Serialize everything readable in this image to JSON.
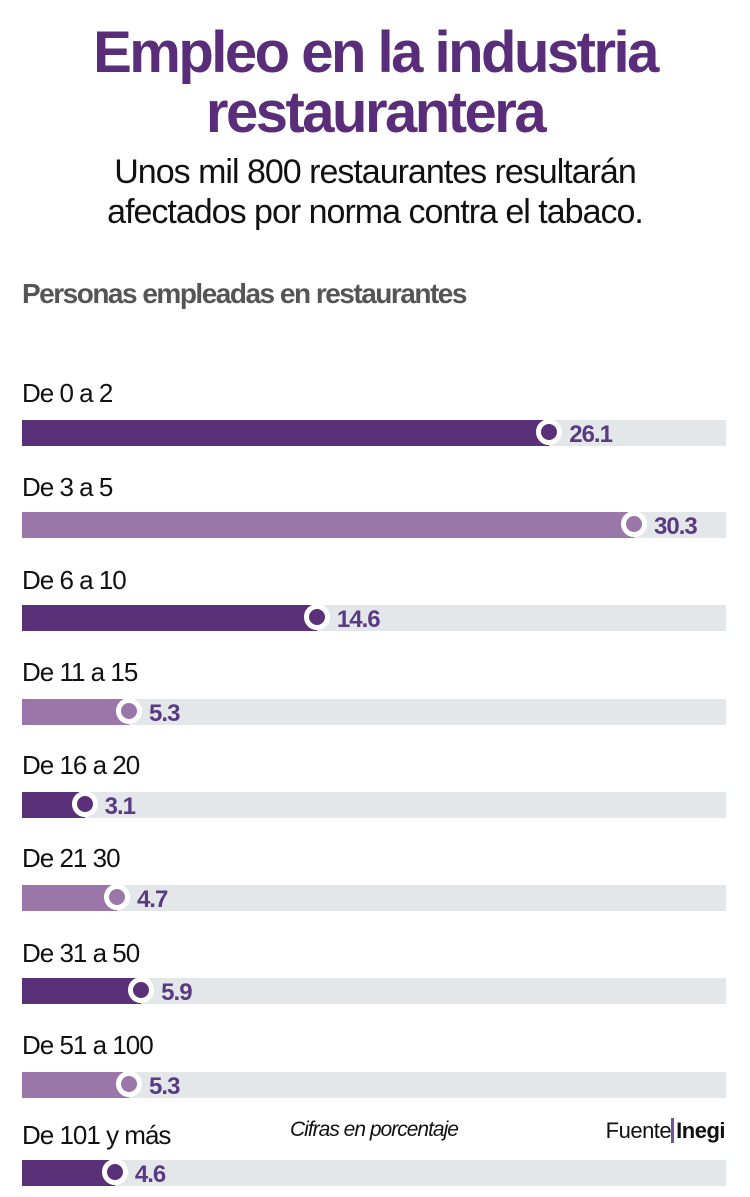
{
  "header": {
    "title_line1": "Empleo en la industria",
    "title_line2": "restaurantera",
    "subtitle_line1": "Unos mil 800 restaurantes resultarán",
    "subtitle_line2": "afectados por norma contra el tabaco."
  },
  "footer": {
    "note": "Cifras en porcentaje",
    "source_label": "Fuente",
    "source_name": "Inegi"
  },
  "colors": {
    "dark": "#5a3079",
    "light": "#9a77a8",
    "track": "#e4e7ea",
    "value_text": "#5a3a82"
  },
  "chart_data": {
    "type": "bar",
    "orientation": "horizontal",
    "title": "Personas empleadas en restaurantes",
    "xlabel": "",
    "ylabel": "",
    "unit": "Cifras en porcentaje",
    "xlim": [
      0,
      35
    ],
    "grid": false,
    "categories": [
      "De 0 a 2",
      "De 3 a 5",
      "De 6 a 10",
      "De 11 a 15",
      "De 16 a 20",
      "De 21 30",
      "De 31 a 50",
      "De 51 a 100",
      "De 101 y más"
    ],
    "values": [
      26.1,
      30.3,
      14.6,
      5.3,
      3.1,
      4.7,
      5.9,
      5.3,
      4.6
    ],
    "value_labels": [
      "26.1",
      "30.3",
      "14.6",
      "5.3",
      "3.1",
      "4.7",
      "5.9",
      "5.3",
      "4.6"
    ],
    "bar_shades": [
      "dark",
      "light",
      "dark",
      "light",
      "dark",
      "light",
      "dark",
      "light",
      "dark"
    ]
  }
}
